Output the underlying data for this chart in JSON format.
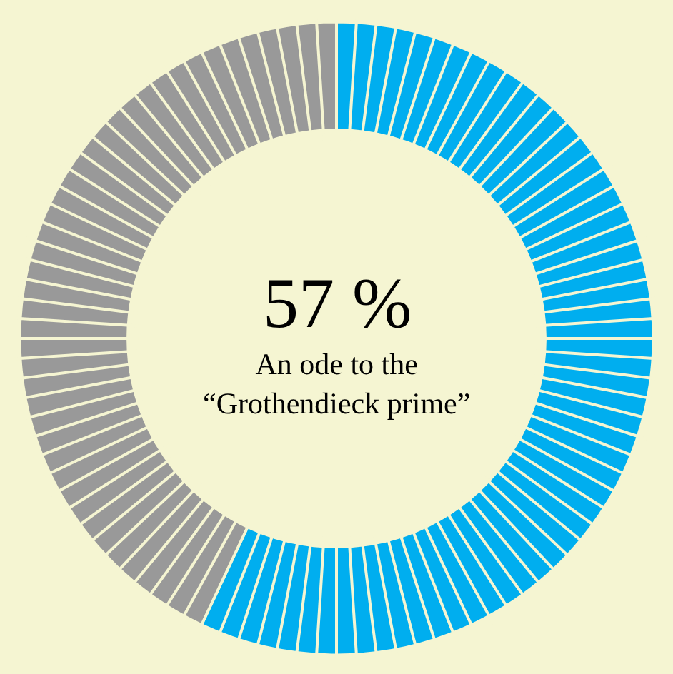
{
  "chart_data": {
    "type": "donut",
    "title": "57 %",
    "subtitle": "An ode to the\n“Grothendieck prime”",
    "categories": [
      null,
      null
    ],
    "values": [
      57,
      43
    ],
    "colors": [
      "#00aeef",
      "#999999"
    ]
  }
}
